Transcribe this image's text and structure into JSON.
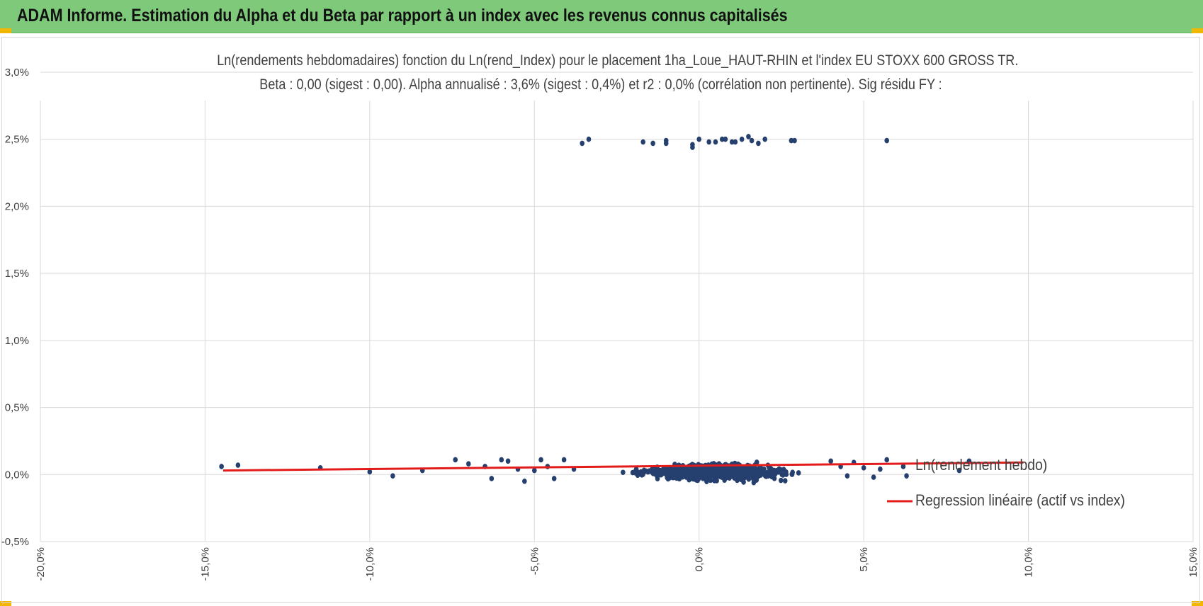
{
  "header": {
    "title": "ADAM Informe. Estimation du Alpha et du Beta par rapport à un index avec les revenus connus capitalisés"
  },
  "colors": {
    "header_bg": "#7ec97a",
    "corner_accent": "#f2b705",
    "points": "#253f6e",
    "regression": "#e31b1b",
    "grid": "#d9d9d9"
  },
  "chart_data": {
    "type": "scatter",
    "title": "Ln(rendements hebdomadaires) fonction du Ln(rend_Index) pour le placement 1ha_Loue_HAUT-RHIN et l'index EU STOXX 600 GROSS TR.",
    "subtitle": "Beta : 0,00 (sigest : 0,00). Alpha annualisé : 3,6% (sigest : 0,4%) et r2 : 0,0% (corrélation non pertinente). Sig résidu FY :",
    "xlabel": "",
    "ylabel": "",
    "xlim": [
      -0.2,
      0.15
    ],
    "ylim": [
      -0.005,
      0.03
    ],
    "x_ticks": [
      -0.2,
      -0.15,
      -0.1,
      -0.05,
      0.0,
      0.05,
      0.1,
      0.15
    ],
    "x_tick_labels": [
      "-20,0%",
      "-15,0%",
      "-10,0%",
      "-5,0%",
      "0,0%",
      "5,0%",
      "10,0%",
      "15,0%"
    ],
    "y_ticks": [
      -0.005,
      0.0,
      0.005,
      0.01,
      0.015,
      0.02,
      0.025,
      0.03
    ],
    "y_tick_labels": [
      "-0,5%",
      "0,0%",
      "0,5%",
      "1,0%",
      "1,5%",
      "2,0%",
      "2,5%",
      "3,0%"
    ],
    "grid": true,
    "legend_position": "right",
    "series": [
      {
        "name": "Ln(rendement hebdo)",
        "kind": "points",
        "points_upper": [
          [
            -0.0355,
            0.0247
          ],
          [
            -0.0335,
            0.025
          ],
          [
            -0.017,
            0.0248
          ],
          [
            -0.014,
            0.0247
          ],
          [
            -0.01,
            0.0249
          ],
          [
            -0.01,
            0.0247
          ],
          [
            -0.002,
            0.0246
          ],
          [
            -0.002,
            0.0244
          ],
          [
            0.0,
            0.025
          ],
          [
            0.003,
            0.0248
          ],
          [
            0.005,
            0.0248
          ],
          [
            0.007,
            0.025
          ],
          [
            0.008,
            0.025
          ],
          [
            0.01,
            0.0248
          ],
          [
            0.011,
            0.0248
          ],
          [
            0.013,
            0.025
          ],
          [
            0.015,
            0.0252
          ],
          [
            0.016,
            0.0249
          ],
          [
            0.018,
            0.0247
          ],
          [
            0.02,
            0.025
          ],
          [
            0.028,
            0.0249
          ],
          [
            0.029,
            0.0249
          ],
          [
            0.057,
            0.0249
          ]
        ],
        "points_lower_edges": [
          [
            -0.145,
            0.0006
          ],
          [
            -0.14,
            0.0007
          ],
          [
            -0.115,
            0.0005
          ],
          [
            -0.1,
            0.0002
          ],
          [
            -0.093,
            -0.0001
          ],
          [
            -0.084,
            0.0003
          ],
          [
            -0.074,
            0.0011
          ],
          [
            -0.07,
            0.0008
          ],
          [
            -0.065,
            0.0006
          ],
          [
            -0.063,
            -0.0003
          ],
          [
            -0.06,
            0.0011
          ],
          [
            -0.058,
            0.001
          ],
          [
            -0.055,
            0.0004
          ],
          [
            -0.053,
            -0.0005
          ],
          [
            -0.05,
            0.0003
          ],
          [
            -0.048,
            0.0011
          ],
          [
            -0.046,
            0.0006
          ],
          [
            -0.044,
            -0.0003
          ],
          [
            -0.041,
            0.0011
          ],
          [
            -0.038,
            0.0004
          ],
          [
            0.04,
            0.001
          ],
          [
            0.043,
            0.0006
          ],
          [
            0.045,
            -0.0001
          ],
          [
            0.047,
            0.0009
          ],
          [
            0.05,
            0.0005
          ],
          [
            0.053,
            -0.0002
          ],
          [
            0.055,
            0.0004
          ],
          [
            0.057,
            0.0011
          ],
          [
            0.062,
            0.0006
          ],
          [
            0.063,
            -0.0001
          ],
          [
            0.079,
            0.0003
          ],
          [
            0.082,
            0.001
          ]
        ],
        "cluster_note": "Ln(rendement hebdo)"
      },
      {
        "name": "Regression linéaire (actif vs index)",
        "kind": "line",
        "x": [
          -0.1445,
          0.0985
        ],
        "y": [
          0.0003,
          0.0009
        ]
      }
    ]
  }
}
